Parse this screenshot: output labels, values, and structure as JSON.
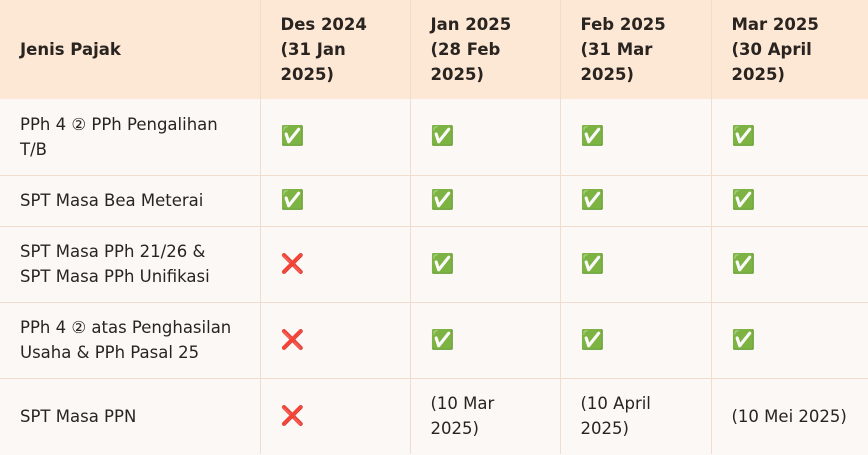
{
  "table": {
    "header": [
      "Jenis Pajak",
      "Des 2024 (31 Jan 2025)",
      "Jan 2025 (28 Feb 2025)",
      "Feb 2025 (31 Mar 2025)",
      "Mar 2025 (30 April 2025)"
    ],
    "rows": [
      [
        "PPh 4 ② PPh Pengalihan T/B",
        "✅",
        "✅",
        "✅",
        "✅"
      ],
      [
        "SPT Masa Bea Meterai",
        "✅",
        "✅",
        "✅",
        "✅"
      ],
      [
        "SPT Masa PPh 21/26 & SPT Masa PPh Unifikasi",
        "❌",
        "✅",
        "✅",
        "✅"
      ],
      [
        "PPh 4 ② atas Penghasilan Usaha & PPh Pasal 25",
        "❌",
        "✅",
        "✅",
        "✅"
      ],
      [
        "SPT Masa PPN",
        "❌",
        "(10 Mar 2025)",
        "(10 April 2025)",
        "(10 Mei 2025)"
      ]
    ]
  }
}
